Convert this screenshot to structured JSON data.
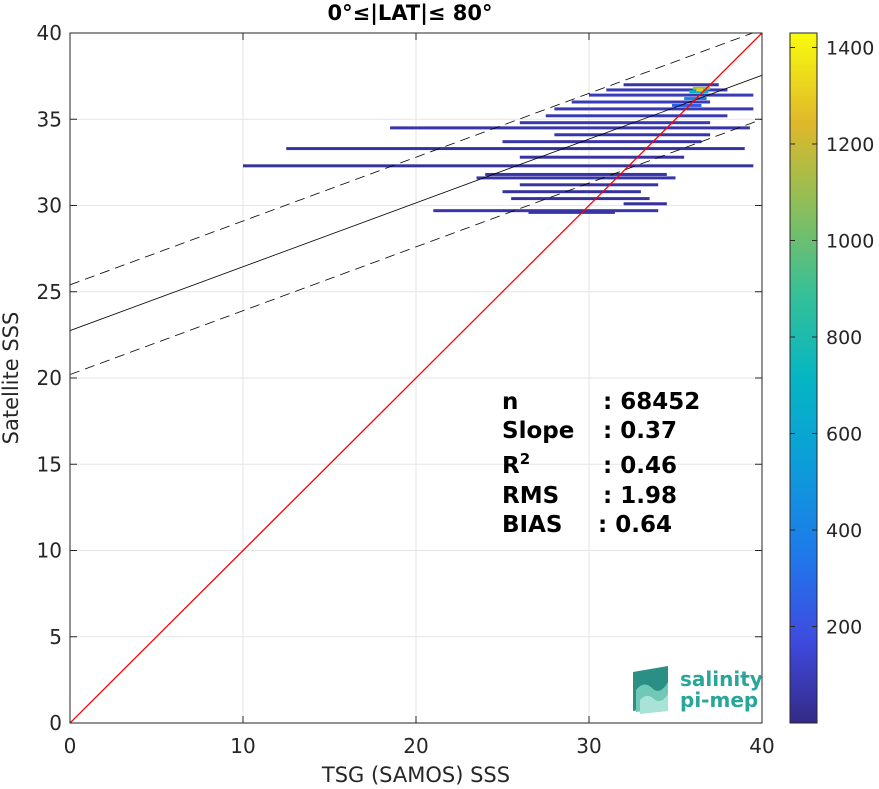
{
  "chart_data": {
    "type": "heatmap",
    "title": "0°≤|LAT|≤ 80°",
    "xlabel": "TSG (SAMOS) SSS",
    "ylabel": "Satellite SSS",
    "xlim": [
      0,
      40
    ],
    "ylim": [
      0,
      40
    ],
    "xticks": [
      "0",
      "10",
      "20",
      "30",
      "40"
    ],
    "yticks": [
      "0",
      "5",
      "10",
      "15",
      "20",
      "25",
      "30",
      "35",
      "40"
    ],
    "grid": true,
    "colorbar": {
      "range": [
        0,
        1430
      ],
      "ticks": [
        "200",
        "400",
        "600",
        "800",
        "1000",
        "1200",
        "1400"
      ],
      "tick_values": [
        200,
        400,
        600,
        800,
        1000,
        1200,
        1400
      ]
    },
    "lines": {
      "identity": {
        "slope": 1,
        "intercept": 0,
        "color": "#ff0000"
      },
      "regression": {
        "slope": 0.37,
        "intercept": 22.75,
        "color": "#000000"
      },
      "upper_band": {
        "slope": 0.37,
        "intercept": 25.4,
        "style": "dashed"
      },
      "lower_band": {
        "slope": 0.37,
        "intercept": 20.2,
        "style": "dashed"
      }
    },
    "density_segments": [
      {
        "x0": 32,
        "x1": 37.5,
        "y": 37.0,
        "count": 60
      },
      {
        "x0": 31,
        "x1": 38,
        "y": 36.7,
        "count": 80
      },
      {
        "x0": 30,
        "x1": 39.5,
        "y": 36.4,
        "count": 90
      },
      {
        "x0": 29,
        "x1": 37,
        "y": 36.0,
        "count": 90
      },
      {
        "x0": 28,
        "x1": 39.5,
        "y": 35.6,
        "count": 85
      },
      {
        "x0": 27.5,
        "x1": 38,
        "y": 35.2,
        "count": 80
      },
      {
        "x0": 26,
        "x1": 37,
        "y": 34.8,
        "count": 75
      },
      {
        "x0": 18.5,
        "x1": 39.3,
        "y": 34.5,
        "count": 55
      },
      {
        "x0": 28,
        "x1": 37,
        "y": 34.1,
        "count": 60
      },
      {
        "x0": 25,
        "x1": 36.5,
        "y": 33.7,
        "count": 55
      },
      {
        "x0": 12.5,
        "x1": 39,
        "y": 33.3,
        "count": 45
      },
      {
        "x0": 26,
        "x1": 35.5,
        "y": 32.8,
        "count": 50
      },
      {
        "x0": 10,
        "x1": 39.5,
        "y": 32.3,
        "count": 40
      },
      {
        "x0": 24,
        "x1": 34.5,
        "y": 31.8,
        "count": 55
      },
      {
        "x0": 23.5,
        "x1": 35,
        "y": 31.6,
        "count": 60
      },
      {
        "x0": 26,
        "x1": 34,
        "y": 31.2,
        "count": 50
      },
      {
        "x0": 25,
        "x1": 33,
        "y": 30.8,
        "count": 45
      },
      {
        "x0": 25.5,
        "x1": 33.5,
        "y": 30.4,
        "count": 40
      },
      {
        "x0": 32,
        "x1": 34.5,
        "y": 30.1,
        "count": 35
      },
      {
        "x0": 21,
        "x1": 34,
        "y": 29.7,
        "count": 55
      },
      {
        "x0": 26.5,
        "x1": 31.5,
        "y": 29.6,
        "count": 60
      },
      {
        "x0": 36,
        "x1": 37,
        "y": 36.8,
        "count": 1100
      },
      {
        "x0": 35.8,
        "x1": 36.9,
        "y": 36.6,
        "count": 700
      },
      {
        "x0": 35.5,
        "x1": 36.8,
        "y": 36.2,
        "count": 400
      },
      {
        "x0": 34.8,
        "x1": 36.5,
        "y": 35.8,
        "count": 250
      },
      {
        "x0": 36.2,
        "x1": 36.6,
        "y": 36.7,
        "count": 1300
      }
    ],
    "stats": [
      {
        "label": "n",
        "value": ": 68452"
      },
      {
        "label": "Slope",
        "value": ": 0.37"
      },
      {
        "label": "R",
        "sup": "2",
        "value": ": 0.46"
      },
      {
        "label": "RMS",
        "value": ": 1.98"
      },
      {
        "label": "BIAS",
        "value": ": 0.64"
      }
    ]
  },
  "logo": {
    "line1": "salinity",
    "line2": "pi-mep"
  }
}
